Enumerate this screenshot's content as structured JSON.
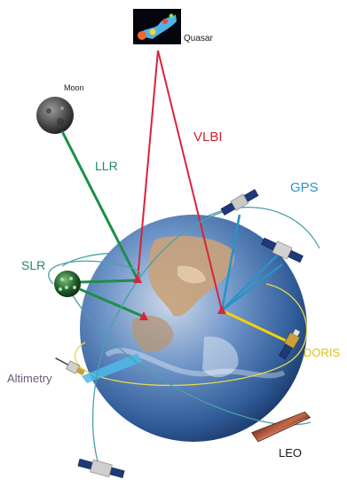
{
  "labels": {
    "quasar": "Quasar",
    "moon": "Moon",
    "vlbi": "VLBI",
    "llr": "LLR",
    "gps": "GPS",
    "slr": "SLR",
    "doris": "DORIS",
    "altimetry": "Altimetry",
    "leo": "LEO"
  },
  "colors": {
    "vlbi": "#d9243a",
    "llr": "#1c8f4a",
    "slr": "#1c8f4a",
    "gps": "#2a93c6",
    "doris": "#f2d400",
    "altimetry": "#4fb8ea",
    "orbit": "#4aa0a8",
    "earth_ocean": "#5a86c0",
    "earth_land": "#c9a27a"
  },
  "icons": {
    "quasar": "quasar-image",
    "moon": "moon-icon",
    "slr_station": "slr-satellite-icon",
    "gps_satellites": "satellite-icon",
    "doris_satellite": "satellite-icon",
    "altimetry_satellite": "satellite-icon",
    "leo_satellite": "satellite-icon"
  }
}
